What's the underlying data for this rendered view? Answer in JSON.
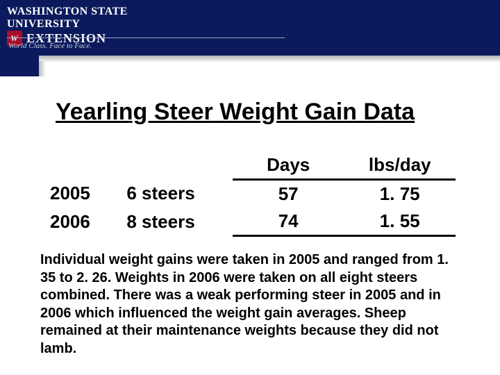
{
  "logo": {
    "university": "WASHINGTON STATE UNIVERSITY",
    "extension": "EXTENSION",
    "tagline": "World Class. Face to Face."
  },
  "title": "Yearling Steer Weight Gain Data",
  "table": {
    "headers": {
      "days": "Days",
      "rate": "lbs/day"
    },
    "rows": [
      {
        "year": "2005",
        "count": "6 steers",
        "days": "57",
        "rate": "1. 75"
      },
      {
        "year": "2006",
        "count": "8 steers",
        "days": "74",
        "rate": "1. 55"
      }
    ]
  },
  "paragraph": "Individual weight gains were taken in 2005 and ranged from 1. 35 to 2. 26. Weights in 2006 were taken on all eight steers combined. There was a weak performing steer in 2005 and in 2006 which influenced the weight gain averages. Sheep remained at their maintenance weights because they did not lamb.",
  "colors": {
    "header_bg": "#0b1a5c",
    "text": "#000000",
    "background": "#ffffff",
    "logo_accent": "#a60f2d"
  }
}
